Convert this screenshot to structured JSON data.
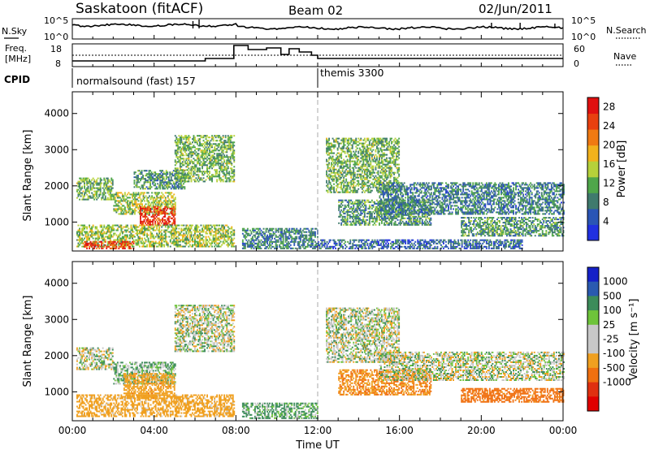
{
  "header": {
    "station": "Saskatoon (fitACF)",
    "beam": "Beam 02",
    "date": "02/Jun/2011"
  },
  "noise_panel": {
    "left_label": "N.Sky",
    "right_label": "N.Search",
    "ticks_left": [
      "10^5",
      "10^0"
    ],
    "ticks_right": [
      "10^5",
      "10^0"
    ]
  },
  "freq_panel": {
    "left_label_1": "Freq.",
    "left_label_2": "[MHz]",
    "right_label": "Nave",
    "ticks_left": [
      "18",
      "8"
    ],
    "ticks_right": [
      "60",
      "0"
    ]
  },
  "cpid": {
    "label": "CPID",
    "program_1": "normalsound (fast) 157",
    "program_2": "themis 3300"
  },
  "colors": {
    "power_scale": [
      "#2030e0",
      "#2a55b5",
      "#3f7a6d",
      "#4fa64a",
      "#b6d13a",
      "#f2b21c",
      "#f07a12",
      "#e8400f",
      "#e01010"
    ],
    "velocity_scale": [
      "#1520c8",
      "#2a5ab0",
      "#3c8c5a",
      "#6ec43a",
      "#c8c8c8",
      "#c8c8c8",
      "#f0a020",
      "#f07010",
      "#e03010",
      "#e00000"
    ]
  },
  "chart_data": [
    {
      "type": "heatmap",
      "name": "power-panel",
      "ylabel": "Slant Range [km]",
      "yticks": [
        "1000",
        "2000",
        "3000",
        "4000"
      ],
      "ylim": [
        200,
        4600
      ],
      "xlim": [
        0,
        24
      ],
      "colorbar_label": "Power [dB]",
      "colorbar_ticks": [
        "4",
        "8",
        "12",
        "16",
        "20",
        "24",
        "28"
      ],
      "colorbar_range": [
        0,
        30
      ],
      "echo_regions": [
        {
          "t0": 0.2,
          "t1": 2.0,
          "r0": 1600,
          "r1": 2200,
          "level": 12
        },
        {
          "t0": 2.0,
          "t1": 5.0,
          "r0": 1200,
          "r1": 1800,
          "level": 14
        },
        {
          "t0": 3.3,
          "t1": 5.0,
          "r0": 900,
          "r1": 1400,
          "level": 26
        },
        {
          "t0": 3.0,
          "t1": 5.5,
          "r0": 1900,
          "r1": 2400,
          "level": 10
        },
        {
          "t0": 5.0,
          "t1": 7.9,
          "r0": 2100,
          "r1": 3400,
          "level": 12
        },
        {
          "t0": 0.2,
          "t1": 7.9,
          "r0": 300,
          "r1": 900,
          "level": 14
        },
        {
          "t0": 0.5,
          "t1": 3.0,
          "r0": 250,
          "r1": 450,
          "level": 26
        },
        {
          "t0": 8.3,
          "t1": 12.0,
          "r0": 250,
          "r1": 800,
          "level": 8
        },
        {
          "t0": 12.4,
          "t1": 16.0,
          "r0": 1800,
          "r1": 3300,
          "level": 12
        },
        {
          "t0": 13.0,
          "t1": 17.5,
          "r0": 900,
          "r1": 1600,
          "level": 10
        },
        {
          "t0": 15.0,
          "t1": 24.0,
          "r0": 1200,
          "r1": 2100,
          "level": 8
        },
        {
          "t0": 19.0,
          "t1": 24.0,
          "r0": 600,
          "r1": 1100,
          "level": 10
        },
        {
          "t0": 12.0,
          "t1": 22.0,
          "r0": 250,
          "r1": 500,
          "level": 6
        }
      ]
    },
    {
      "type": "heatmap",
      "name": "velocity-panel",
      "ylabel": "Slant Range [km]",
      "yticks": [
        "1000",
        "2000",
        "3000",
        "4000"
      ],
      "ylim": [
        200,
        4600
      ],
      "xlim": [
        0,
        24
      ],
      "xlabel": "Time UT",
      "xticks": [
        "00:00",
        "04:00",
        "08:00",
        "12:00",
        "16:00",
        "20:00",
        "00:00"
      ],
      "colorbar_label": "Velocity [m s⁻¹]",
      "colorbar_ticks": [
        "1000",
        "500",
        "100",
        "25",
        "-25",
        "-100",
        "-500",
        "-1000"
      ],
      "echo_regions": [
        {
          "t0": 0.2,
          "t1": 2.0,
          "r0": 1600,
          "r1": 2200,
          "vel": 0
        },
        {
          "t0": 2.0,
          "t1": 5.0,
          "r0": 1200,
          "r1": 1800,
          "vel": 50
        },
        {
          "t0": 2.5,
          "t1": 5.0,
          "r0": 800,
          "r1": 1500,
          "vel": -200
        },
        {
          "t0": 5.0,
          "t1": 7.9,
          "r0": 2100,
          "r1": 3400,
          "vel": 0
        },
        {
          "t0": 0.2,
          "t1": 7.9,
          "r0": 300,
          "r1": 900,
          "vel": -150
        },
        {
          "t0": 8.3,
          "t1": 12.0,
          "r0": 250,
          "r1": 700,
          "vel": 80
        },
        {
          "t0": 12.4,
          "t1": 16.0,
          "r0": 1800,
          "r1": 3300,
          "vel": 0
        },
        {
          "t0": 13.0,
          "t1": 17.5,
          "r0": 900,
          "r1": 1600,
          "vel": -300
        },
        {
          "t0": 15.0,
          "t1": 24.0,
          "r0": 1300,
          "r1": 2100,
          "vel": 0
        },
        {
          "t0": 19.0,
          "t1": 24.0,
          "r0": 700,
          "r1": 1100,
          "vel": -400
        }
      ]
    }
  ]
}
